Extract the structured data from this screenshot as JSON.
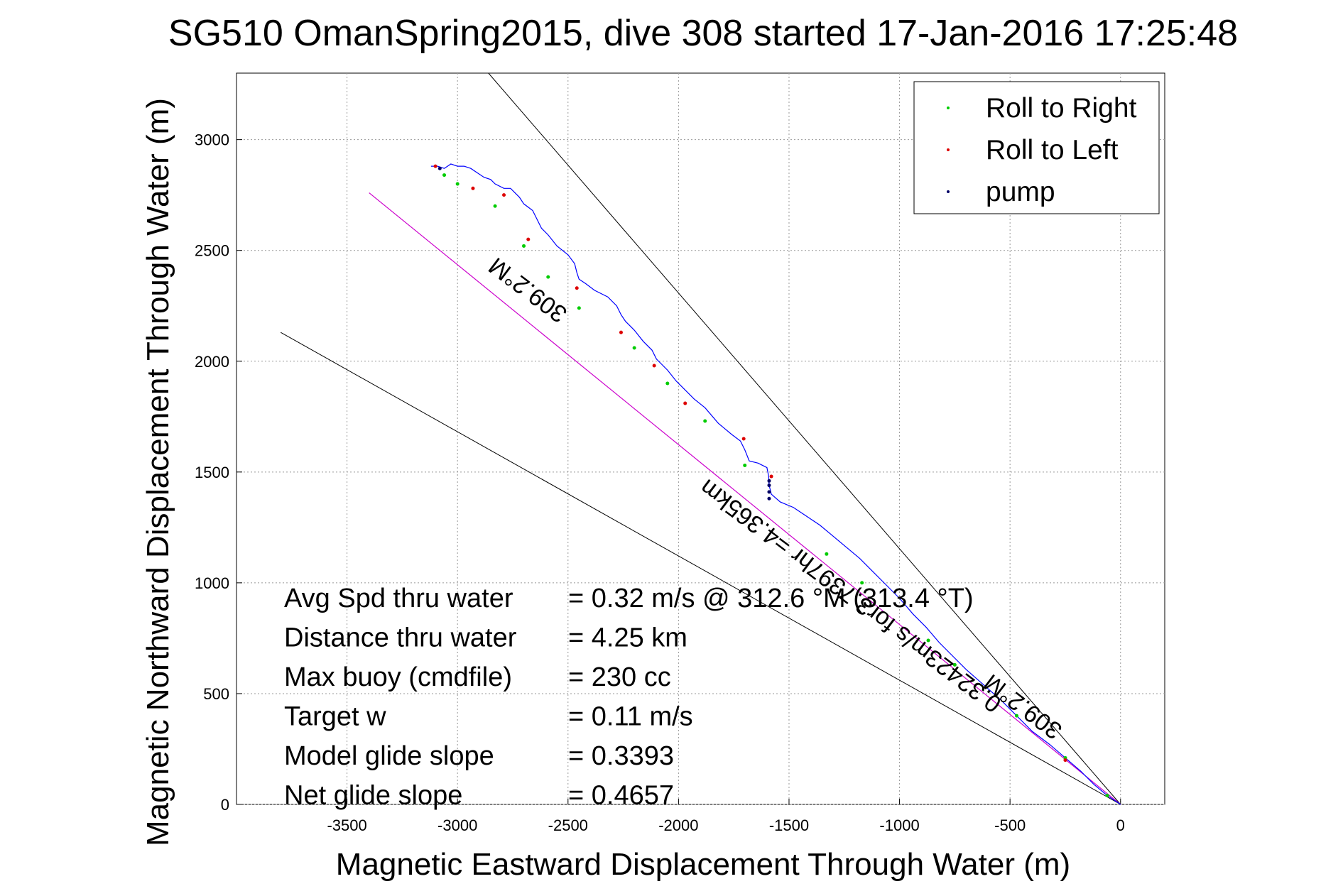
{
  "chart_data": {
    "type": "line",
    "title": "SG510 OmanSpring2015, dive 308 started 17-Jan-2016 17:25:48",
    "xlabel": "Magnetic Eastward Displacement Through Water (m)",
    "ylabel": "Magnetic Northward Displacement Through Water (m)",
    "xlim": [
      -4000,
      200
    ],
    "ylim": [
      0,
      3300
    ],
    "x_ticks": [
      -3500,
      -3000,
      -2500,
      -2000,
      -1500,
      -1000,
      -500,
      0
    ],
    "y_ticks": [
      0,
      500,
      1000,
      1500,
      2000,
      2500,
      3000
    ],
    "x_tick_labels": [
      "-3500",
      "-3000",
      "-2500",
      "-2000",
      "-1500",
      "-1000",
      "-500",
      "0"
    ],
    "y_tick_labels": [
      "0",
      "500",
      "1000",
      "1500",
      "2000",
      "2500",
      "3000"
    ],
    "grid": true,
    "legend": {
      "placement": "top-right",
      "entries": [
        {
          "label": "Roll to Right",
          "color": "#00cc00"
        },
        {
          "label": "Roll to Left",
          "color": "#dd0000"
        },
        {
          "label": "pump",
          "color": "#000066"
        }
      ]
    },
    "track_color": "#0000ff",
    "heading_line_color": "#cc00cc",
    "bound_line_color": "#000000",
    "track": {
      "x": [
        0,
        -60,
        -120,
        -180,
        -250,
        -320,
        -400,
        -470,
        -540,
        -620,
        -700,
        -760,
        -820,
        -880,
        -940,
        -1000,
        -1060,
        -1120,
        -1180,
        -1240,
        -1300,
        -1360,
        -1420,
        -1480,
        -1540,
        -1580,
        -1590,
        -1592,
        -1600,
        -1640,
        -1680,
        -1700,
        -1720,
        -1760,
        -1820,
        -1880,
        -1930,
        -1970,
        -2010,
        -2050,
        -2080,
        -2100,
        -2120,
        -2160,
        -2200,
        -2240,
        -2260,
        -2280,
        -2320,
        -2380,
        -2420,
        -2450,
        -2460,
        -2470,
        -2500,
        -2550,
        -2590,
        -2620,
        -2640,
        -2660,
        -2700,
        -2720,
        -2740,
        -2760,
        -2790,
        -2830,
        -2850,
        -2880,
        -2910,
        -2940,
        -2970,
        -3000,
        -3030,
        -3060,
        -3090,
        -3120
      ],
      "y": [
        0,
        40,
        90,
        150,
        210,
        270,
        330,
        400,
        470,
        540,
        610,
        670,
        730,
        800,
        860,
        930,
        990,
        1050,
        1110,
        1160,
        1210,
        1260,
        1300,
        1340,
        1365,
        1400,
        1440,
        1480,
        1520,
        1540,
        1550,
        1600,
        1640,
        1670,
        1720,
        1790,
        1830,
        1870,
        1910,
        1960,
        1990,
        2010,
        2050,
        2090,
        2140,
        2180,
        2210,
        2250,
        2290,
        2320,
        2350,
        2370,
        2400,
        2440,
        2480,
        2520,
        2570,
        2600,
        2640,
        2680,
        2710,
        2740,
        2760,
        2780,
        2780,
        2800,
        2820,
        2830,
        2850,
        2870,
        2880,
        2880,
        2890,
        2870,
        2880,
        2880
      ]
    },
    "roll_right_points": {
      "x": [
        -60,
        -250,
        -470,
        -750,
        -870,
        -1170,
        -1330,
        -1700,
        -1880,
        -2050,
        -2200,
        -2450,
        -2590,
        -2700,
        -2830,
        -3000,
        -3060
      ],
      "y": [
        40,
        210,
        400,
        630,
        740,
        1000,
        1130,
        1530,
        1730,
        1900,
        2060,
        2240,
        2380,
        2520,
        2700,
        2800,
        2840
      ]
    },
    "roll_left_points": {
      "x": [
        -250,
        -1580,
        -1705,
        -1970,
        -2110,
        -2260,
        -2460,
        -2680,
        -2790,
        -2930,
        -3100
      ],
      "y": [
        200,
        1480,
        1650,
        1810,
        1980,
        2130,
        2330,
        2550,
        2750,
        2780,
        2880
      ]
    },
    "pump_points": {
      "x": [
        -1590,
        -1590,
        -1590,
        -1590,
        -3080
      ],
      "y": [
        1380,
        1410,
        1440,
        1460,
        2870
      ]
    },
    "heading_line": {
      "x": [
        0,
        -3400
      ],
      "y": [
        0,
        2760
      ]
    },
    "bound_lines": [
      {
        "x": [
          0,
          -2860
        ],
        "y": [
          0,
          3300
        ]
      },
      {
        "x": [
          0,
          -3800
        ],
        "y": [
          0,
          2130
        ]
      }
    ],
    "annotations": [
      {
        "text": "309.2°M",
        "x": -2660,
        "y": 2350,
        "rotation": 37
      },
      {
        "text": "0.32423m/s for3.7397hr =4.365km",
        "x": -1200,
        "y": 970,
        "rotation": 37
      },
      {
        "text": "309.2°M",
        "x": -420,
        "y": 470,
        "rotation": 37
      }
    ],
    "stats": [
      {
        "label": "Avg Spd thru water",
        "value": "=  0.32 m/s @ 312.6 °M (313.4 °T)"
      },
      {
        "label": "Distance thru water",
        "value": "=  4.25 km"
      },
      {
        "label": "Max buoy (cmdfile)",
        "value": "= 230 cc"
      },
      {
        "label": "Target w",
        "value": "= 0.11 m/s"
      },
      {
        "label": "Model glide slope",
        "value": "= 0.3393"
      },
      {
        "label": "Net glide slope",
        "value": "= 0.4657"
      }
    ]
  }
}
